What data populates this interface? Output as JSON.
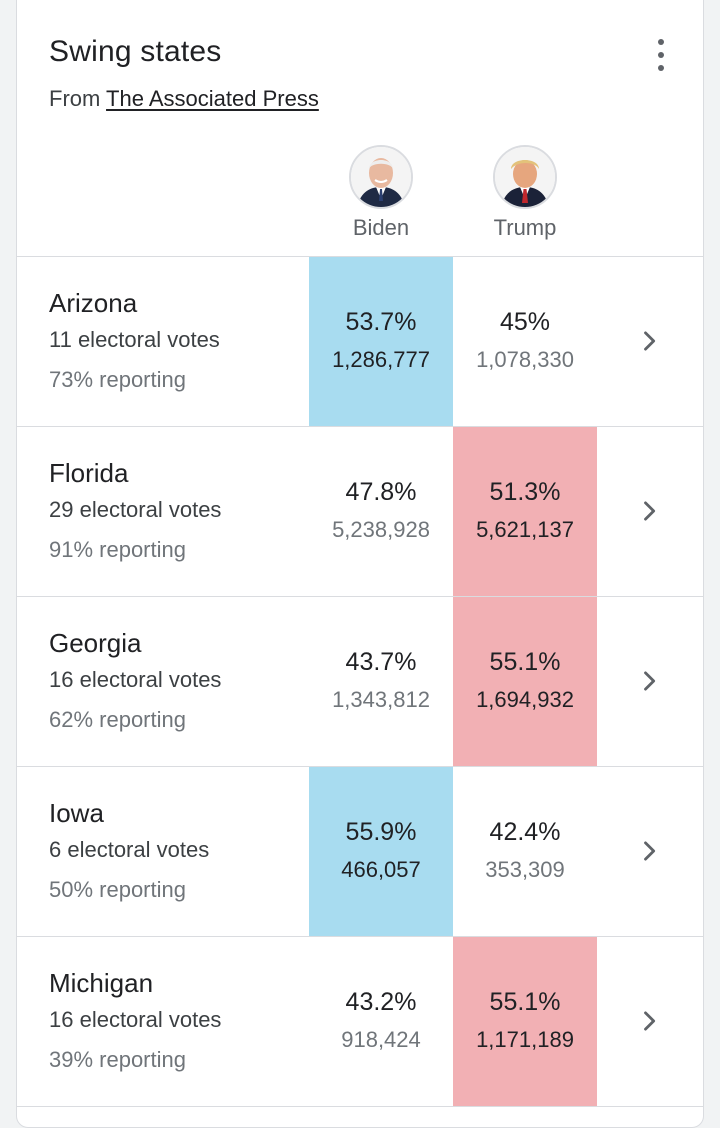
{
  "card": {
    "title": "Swing states",
    "source_prefix": "From",
    "source_link": "The Associated Press"
  },
  "candidates": [
    {
      "name": "Biden",
      "party_color": "#a8dcf0"
    },
    {
      "name": "Trump",
      "party_color": "#f2b0b4"
    }
  ],
  "states": [
    {
      "name": "Arizona",
      "electoral_votes": "11 electoral votes",
      "reporting": "73% reporting",
      "biden": {
        "pct": "53.7%",
        "votes": "1,286,777"
      },
      "trump": {
        "pct": "45%",
        "votes": "1,078,330"
      },
      "leader": "biden"
    },
    {
      "name": "Florida",
      "electoral_votes": "29 electoral votes",
      "reporting": "91% reporting",
      "biden": {
        "pct": "47.8%",
        "votes": "5,238,928"
      },
      "trump": {
        "pct": "51.3%",
        "votes": "5,621,137"
      },
      "leader": "trump"
    },
    {
      "name": "Georgia",
      "electoral_votes": "16 electoral votes",
      "reporting": "62% reporting",
      "biden": {
        "pct": "43.7%",
        "votes": "1,343,812"
      },
      "trump": {
        "pct": "55.1%",
        "votes": "1,694,932"
      },
      "leader": "trump"
    },
    {
      "name": "Iowa",
      "electoral_votes": "6 electoral votes",
      "reporting": "50% reporting",
      "biden": {
        "pct": "55.9%",
        "votes": "466,057"
      },
      "trump": {
        "pct": "42.4%",
        "votes": "353,309"
      },
      "leader": "biden"
    },
    {
      "name": "Michigan",
      "electoral_votes": "16 electoral votes",
      "reporting": "39% reporting",
      "biden": {
        "pct": "43.2%",
        "votes": "918,424"
      },
      "trump": {
        "pct": "55.1%",
        "votes": "1,171,189"
      },
      "leader": "trump"
    }
  ],
  "icons": {
    "more": "more-vert-icon",
    "chevron": "chevron-right-icon"
  }
}
